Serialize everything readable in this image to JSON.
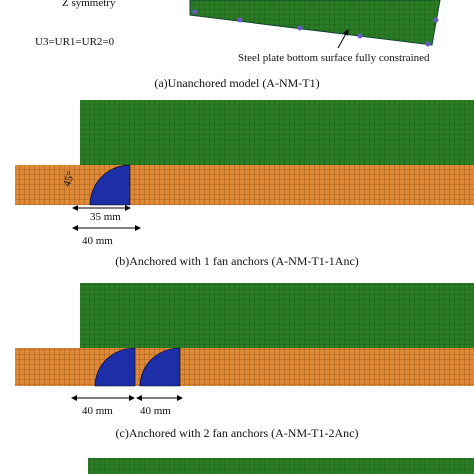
{
  "panels": [
    {
      "annotations": [
        "Z symmetry",
        "U3=UR1=UR2=0",
        "Steel plate bottom surface fully constrained"
      ],
      "caption": "(a)Unanchored model (A-NM-T1)"
    },
    {
      "annotations": [
        "45°",
        "35 mm",
        "40 mm"
      ],
      "caption": "(b)Anchored with 1 fan anchors (A-NM-T1-1Anc)"
    },
    {
      "annotations": [
        "40 mm",
        "40 mm"
      ],
      "caption": "(c)Anchored with 2 fan anchors (A-NM-T1-2Anc)"
    }
  ]
}
